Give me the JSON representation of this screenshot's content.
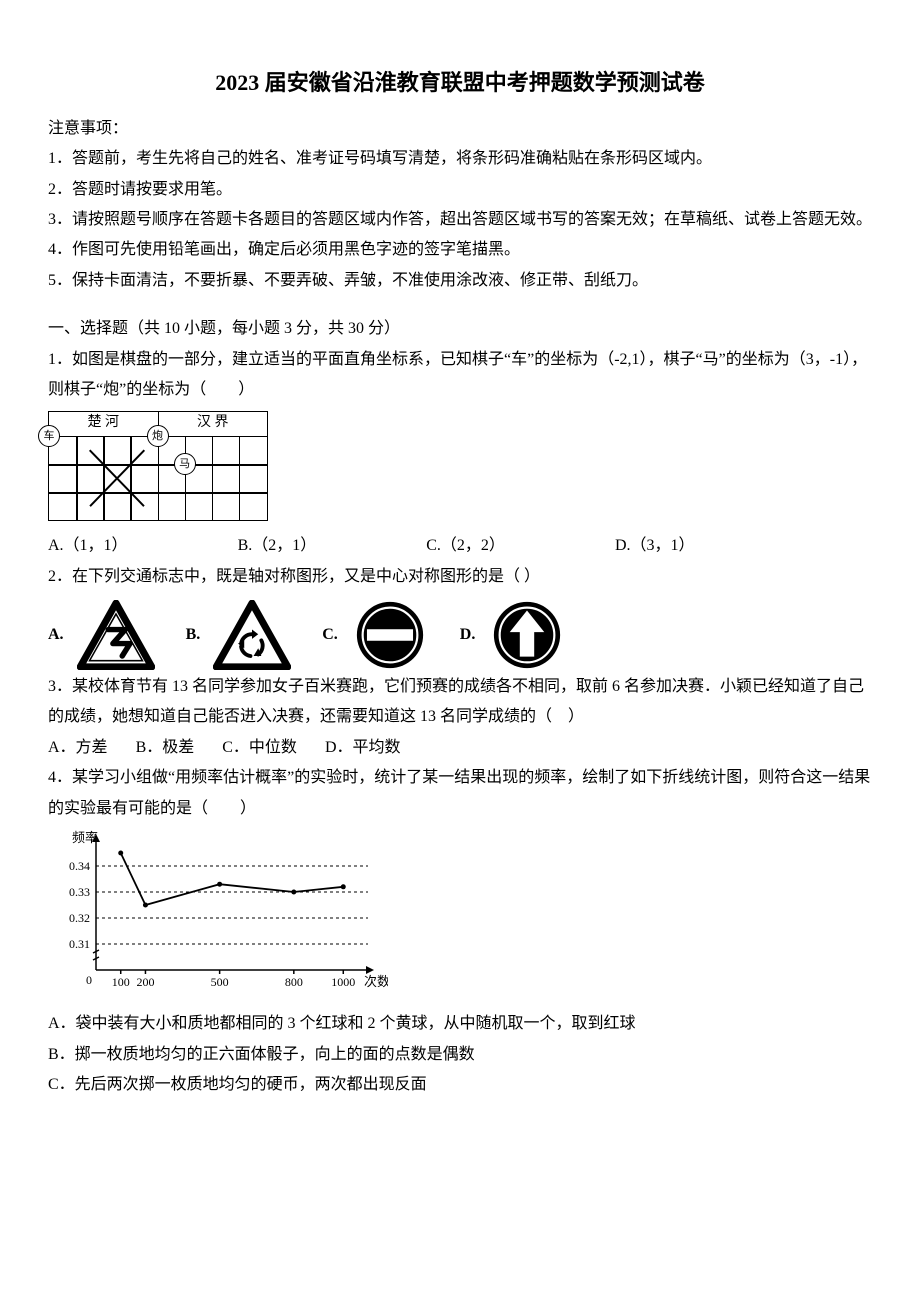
{
  "colors": {
    "text": "#000000",
    "bg": "#ffffff",
    "line": "#000000"
  },
  "typography": {
    "title_fontsize": 22,
    "body_fontsize": 16,
    "font_family": "SimSun"
  },
  "title": "2023 届安徽省沿淮教育联盟中考押题数学预测试卷",
  "notice_header": "注意事项：",
  "notices": [
    "1．答题前，考生先将自己的姓名、准考证号码填写清楚，将条形码准确粘贴在条形码区域内。",
    "2．答题时请按要求用笔。",
    "3．请按照题号顺序在答题卡各题目的答题区域内作答，超出答题区域书写的答案无效；在草稿纸、试卷上答题无效。",
    "4．作图可先使用铅笔画出，确定后必须用黑色字迹的签字笔描黑。",
    "5．保持卡面清洁，不要折暴、不要弄破、弄皱，不准使用涂改液、修正带、刮纸刀。"
  ],
  "section1": "一、选择题（共 10 小题，每小题 3 分，共 30 分）",
  "q1": {
    "text1": "1．如图是棋盘的一部分，建立适当的平面直角坐标系，已知棋子“车”的坐标为（-2,1），棋子“马”的坐标为（3，-1），",
    "text2": "则棋子“炮”的坐标为（　　）",
    "board": {
      "left_label": "楚 河",
      "right_label": "汉 界",
      "cols": 8,
      "rows": 3,
      "pieces": [
        {
          "label": "车",
          "col": 0,
          "row": 0
        },
        {
          "label": "炮",
          "col": 4,
          "row": 0
        },
        {
          "label": "马",
          "col": 5,
          "row": 1
        }
      ]
    },
    "opts": {
      "A": "A.（1，1）",
      "B": "B.（2，1）",
      "C": "C.（2，2）",
      "D": "D.（3，1）"
    }
  },
  "q2": {
    "text": "2．在下列交通标志中，既是轴对称图形，又是中心对称图形的是（  ）",
    "labels": {
      "A": "A.",
      "B": "B.",
      "C": "C.",
      "D": "D."
    },
    "signs": {
      "triangle_stroke": "#000000",
      "triangle_fill": "#ffffff",
      "circle_fill": "#000000",
      "bar_fill": "#ffffff",
      "arrow_fill": "#ffffff"
    }
  },
  "q3": {
    "text1": "3．某校体育节有 13 名同学参加女子百米赛跑，它们预赛的成绩各不相同，取前 6 名参加决赛．小颖已经知道了自己",
    "text2": "的成绩，她想知道自己能否进入决赛，还需要知道这 13 名同学成绩的（　）",
    "opts": {
      "A": "A．方差",
      "B": "B．极差",
      "C": "C．中位数",
      "D": "D．平均数"
    }
  },
  "q4": {
    "text1": "4．某学习小组做“用频率估计概率”的实验时，统计了某一结果出现的频率，绘制了如下折线统计图，则符合这一结果",
    "text2": "的实验最有可能的是（　　）",
    "chart": {
      "type": "line",
      "ylabel": "频率",
      "xlabel": "次数",
      "yticks": [
        0.31,
        0.32,
        0.33,
        0.34
      ],
      "ylim": [
        0.3,
        0.35
      ],
      "xticks": [
        100,
        200,
        500,
        800,
        1000
      ],
      "xlim": [
        0,
        1100
      ],
      "points": [
        {
          "x": 100,
          "y": 0.345
        },
        {
          "x": 200,
          "y": 0.325
        },
        {
          "x": 500,
          "y": 0.333
        },
        {
          "x": 800,
          "y": 0.33
        },
        {
          "x": 1000,
          "y": 0.332
        }
      ],
      "line_color": "#000000",
      "grid_style": "dashed",
      "grid_color": "#000000",
      "axis_color": "#000000",
      "label_fontsize": 13
    },
    "opts": {
      "A": "A．袋中装有大小和质地都相同的 3 个红球和 2 个黄球，从中随机取一个，取到红球",
      "B": "B．掷一枚质地均匀的正六面体骰子，向上的面的点数是偶数",
      "C": "C．先后两次掷一枚质地均匀的硬币，两次都出现反面"
    }
  }
}
